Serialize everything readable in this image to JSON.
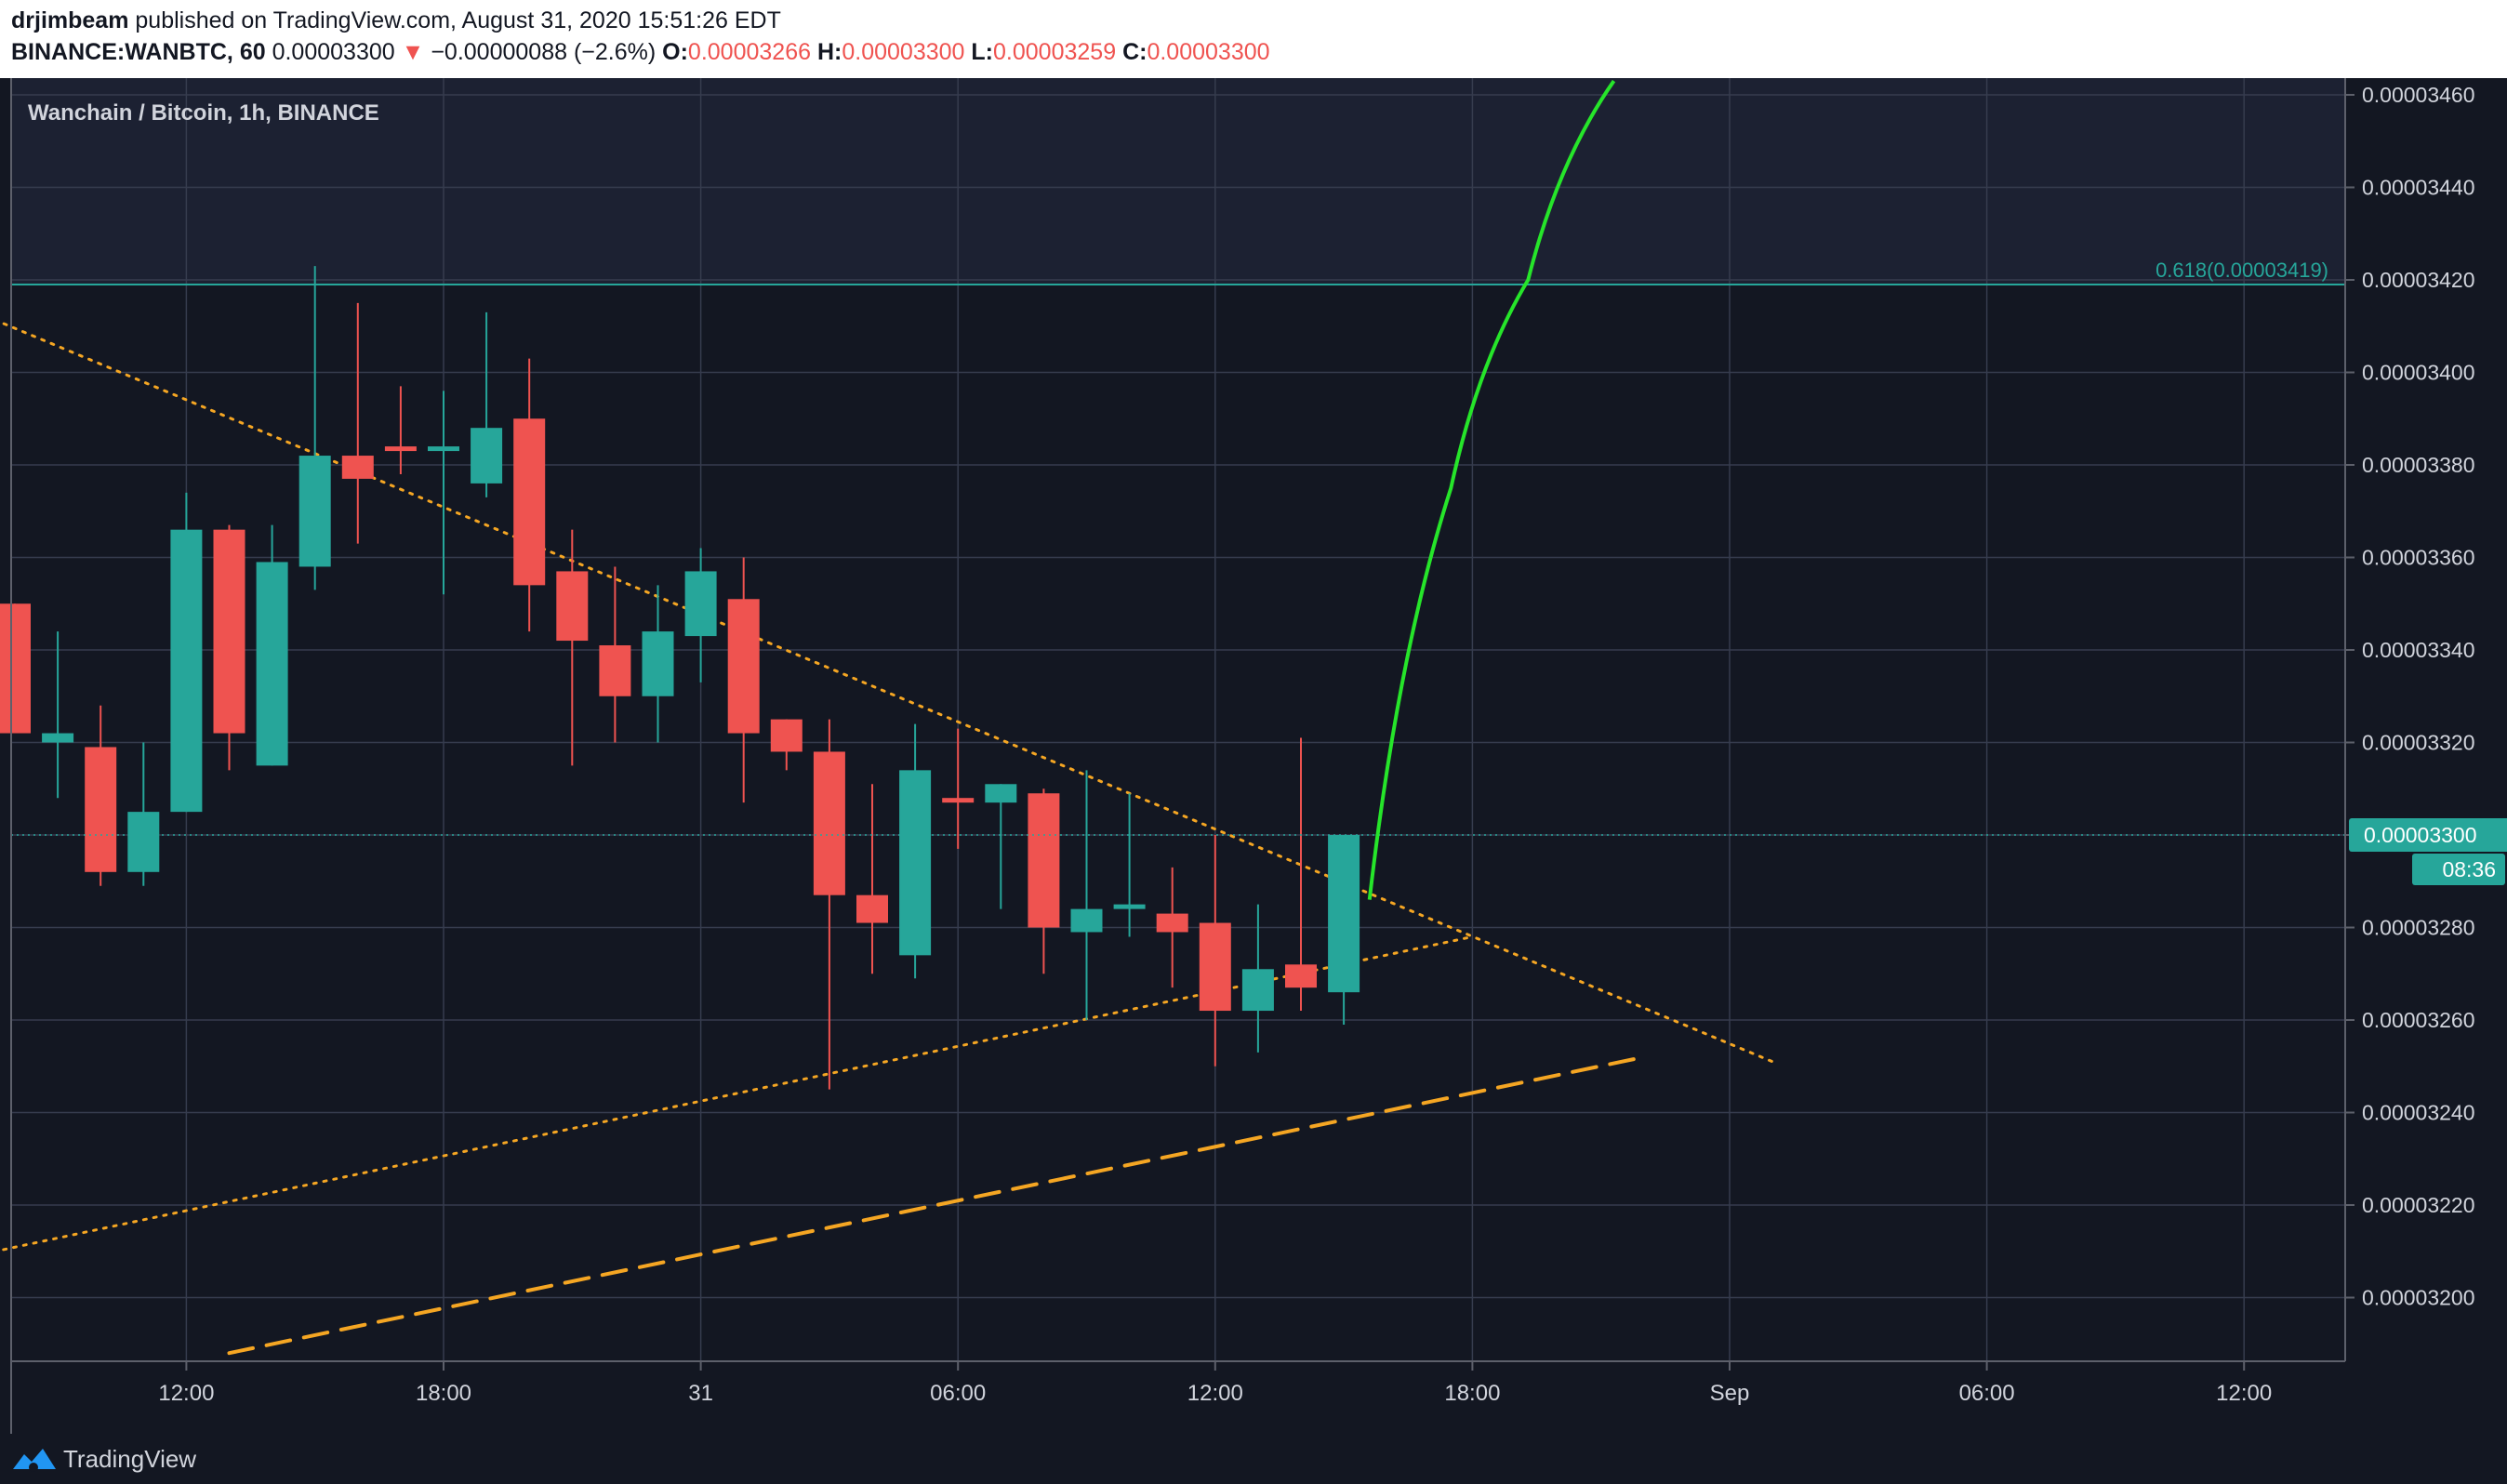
{
  "header": {
    "author": "drjimbeam",
    "published_text": "published on TradingView.com, August 31, 2020 15:51:26 EDT",
    "symbol_interval": "BINANCE:WANBTC, 60",
    "last_price": "0.00003300",
    "change_arrow": "▼",
    "change": "−0.00000088 (−2.6%)",
    "open_label": "O:",
    "open_value": "0.00003266",
    "high_label": "H:",
    "high_value": "0.00003300",
    "low_label": "L:",
    "low_value": "0.00003259",
    "close_label": "C:",
    "close_value": "0.00003300"
  },
  "chart_data": {
    "type": "candlestick",
    "title": "Wanchain / Bitcoin, 1h, BINANCE",
    "ylim": [
      3.19e-05,
      3.463e-05
    ],
    "price_ticks": [
      "0.00003460",
      "0.00003440",
      "0.00003420",
      "0.00003400",
      "0.00003380",
      "0.00003360",
      "0.00003340",
      "0.00003320",
      "0.00003300",
      "0.00003280",
      "0.00003260",
      "0.00003240",
      "0.00003220",
      "0.00003200"
    ],
    "time_ticks": [
      {
        "label": "12:00",
        "bar": 4
      },
      {
        "label": "18:00",
        "bar": 10
      },
      {
        "label": "31",
        "bar": 16
      },
      {
        "label": "06:00",
        "bar": 22
      },
      {
        "label": "12:00",
        "bar": 28
      },
      {
        "label": "18:00",
        "bar": 34
      },
      {
        "label": "Sep",
        "bar": 40
      },
      {
        "label": "06:00",
        "bar": 46
      },
      {
        "label": "12:00",
        "bar": 52
      }
    ],
    "candles": [
      {
        "o": 3.35e-05,
        "h": 3.35e-05,
        "l": 3.322e-05,
        "c": 3.322e-05
      },
      {
        "o": 3.32e-05,
        "h": 3.344e-05,
        "l": 3.308e-05,
        "c": 3.322e-05
      },
      {
        "o": 3.319e-05,
        "h": 3.328e-05,
        "l": 3.289e-05,
        "c": 3.292e-05
      },
      {
        "o": 3.292e-05,
        "h": 3.32e-05,
        "l": 3.289e-05,
        "c": 3.305e-05
      },
      {
        "o": 3.305e-05,
        "h": 3.374e-05,
        "l": 3.305e-05,
        "c": 3.366e-05
      },
      {
        "o": 3.366e-05,
        "h": 3.367e-05,
        "l": 3.314e-05,
        "c": 3.322e-05
      },
      {
        "o": 3.315e-05,
        "h": 3.367e-05,
        "l": 3.315e-05,
        "c": 3.359e-05
      },
      {
        "o": 3.358e-05,
        "h": 3.423e-05,
        "l": 3.353e-05,
        "c": 3.382e-05
      },
      {
        "o": 3.382e-05,
        "h": 3.415e-05,
        "l": 3.363e-05,
        "c": 3.377e-05
      },
      {
        "o": 3.384e-05,
        "h": 3.397e-05,
        "l": 3.378e-05,
        "c": 3.383e-05
      },
      {
        "o": 3.383e-05,
        "h": 3.396e-05,
        "l": 3.352e-05,
        "c": 3.384e-05
      },
      {
        "o": 3.376e-05,
        "h": 3.413e-05,
        "l": 3.373e-05,
        "c": 3.388e-05
      },
      {
        "o": 3.39e-05,
        "h": 3.403e-05,
        "l": 3.344e-05,
        "c": 3.354e-05
      },
      {
        "o": 3.357e-05,
        "h": 3.366e-05,
        "l": 3.315e-05,
        "c": 3.342e-05
      },
      {
        "o": 3.341e-05,
        "h": 3.358e-05,
        "l": 3.32e-05,
        "c": 3.33e-05
      },
      {
        "o": 3.33e-05,
        "h": 3.354e-05,
        "l": 3.32e-05,
        "c": 3.344e-05
      },
      {
        "o": 3.343e-05,
        "h": 3.362e-05,
        "l": 3.333e-05,
        "c": 3.357e-05
      },
      {
        "o": 3.351e-05,
        "h": 3.36e-05,
        "l": 3.307e-05,
        "c": 3.322e-05
      },
      {
        "o": 3.325e-05,
        "h": 3.325e-05,
        "l": 3.314e-05,
        "c": 3.318e-05
      },
      {
        "o": 3.318e-05,
        "h": 3.325e-05,
        "l": 3.245e-05,
        "c": 3.287e-05
      },
      {
        "o": 3.287e-05,
        "h": 3.311e-05,
        "l": 3.27e-05,
        "c": 3.281e-05
      },
      {
        "o": 3.274e-05,
        "h": 3.324e-05,
        "l": 3.269e-05,
        "c": 3.314e-05
      },
      {
        "o": 3.308e-05,
        "h": 3.323e-05,
        "l": 3.297e-05,
        "c": 3.307e-05
      },
      {
        "o": 3.307e-05,
        "h": 3.311e-05,
        "l": 3.284e-05,
        "c": 3.311e-05
      },
      {
        "o": 3.309e-05,
        "h": 3.31e-05,
        "l": 3.27e-05,
        "c": 3.28e-05
      },
      {
        "o": 3.279e-05,
        "h": 3.314e-05,
        "l": 3.26e-05,
        "c": 3.284e-05
      },
      {
        "o": 3.284e-05,
        "h": 3.309e-05,
        "l": 3.278e-05,
        "c": 3.285e-05
      },
      {
        "o": 3.283e-05,
        "h": 3.293e-05,
        "l": 3.267e-05,
        "c": 3.279e-05
      },
      {
        "o": 3.281e-05,
        "h": 3.3e-05,
        "l": 3.25e-05,
        "c": 3.262e-05
      },
      {
        "o": 3.262e-05,
        "h": 3.285e-05,
        "l": 3.253e-05,
        "c": 3.271e-05
      },
      {
        "o": 3.272e-05,
        "h": 3.321e-05,
        "l": 3.262e-05,
        "c": 3.267e-05
      },
      {
        "o": 3.266e-05,
        "h": 3.3e-05,
        "l": 3.259e-05,
        "c": 3.3e-05
      }
    ],
    "fib_level": {
      "label": "0.618(0.00003419)",
      "value": 3.419e-05
    },
    "current_price_label": "0.00003300",
    "current_price": 3.3e-05,
    "countdown": "08:36",
    "trendlines": [
      {
        "style": "dotted",
        "from": {
          "bar": -4,
          "price": 3.425e-05
        },
        "to": {
          "bar": 41,
          "price": 3.251e-05
        }
      },
      {
        "style": "dotted",
        "from": {
          "bar": -4,
          "price": 3.203e-05
        },
        "to": {
          "bar": 34,
          "price": 3.278e-05
        }
      },
      {
        "style": "dashed",
        "from": {
          "bar": 5,
          "price": 3.188e-05
        },
        "to": {
          "bar": 38,
          "price": 3.252e-05
        }
      }
    ],
    "projection": {
      "color": "#26e52a",
      "points": [
        {
          "bar": 31.6,
          "price": 3.286e-05
        },
        {
          "bar": 33.5,
          "price": 3.375e-05
        },
        {
          "bar": 35.3,
          "price": 3.42e-05
        },
        {
          "bar": 37.3,
          "price": 3.463e-05
        }
      ]
    },
    "colors": {
      "background": "#131722",
      "up": "#26a69a",
      "down": "#ef5350",
      "grid": "#363c4e",
      "axis_text": "#d1d4dc",
      "trend": "#f5a623",
      "fib": "#26a69a",
      "fib_band": "#1c2132"
    }
  },
  "footer": {
    "brand": "TradingView"
  }
}
